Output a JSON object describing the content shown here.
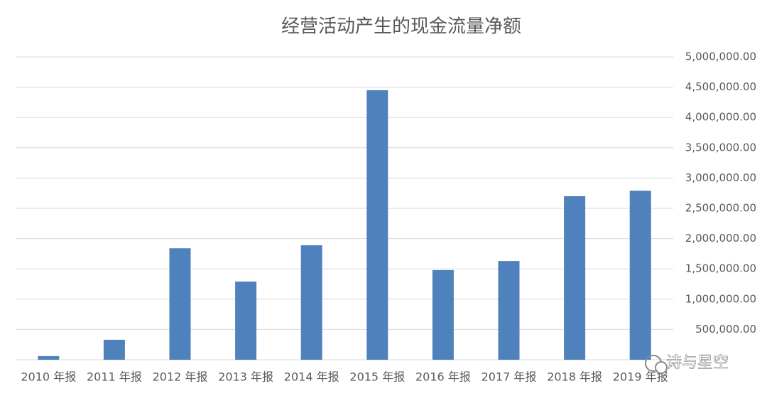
{
  "chart_data": {
    "type": "bar",
    "title": "经营活动产生的现金流量净额",
    "categories": [
      "2010 年报",
      "2011 年报",
      "2012 年报",
      "2013 年报",
      "2014 年报",
      "2015 年报",
      "2016 年报",
      "2017 年报",
      "2018 年报",
      "2019 年报"
    ],
    "values": [
      60000,
      330000,
      1840000,
      1290000,
      1890000,
      4450000,
      1480000,
      1630000,
      2700000,
      2790000
    ],
    "color": "#4f81bd",
    "ylim": [
      0,
      5000000
    ],
    "yticks": [
      {
        "value": 500000,
        "label": "500,000.00"
      },
      {
        "value": 1000000,
        "label": "1,000,000.00"
      },
      {
        "value": 1500000,
        "label": "1,500,000.00"
      },
      {
        "value": 2000000,
        "label": "2,000,000.00"
      },
      {
        "value": 2500000,
        "label": "2,500,000.00"
      },
      {
        "value": 3000000,
        "label": "3,000,000.00"
      },
      {
        "value": 3500000,
        "label": "3,500,000.00"
      },
      {
        "value": 4000000,
        "label": "4,000,000.00"
      },
      {
        "value": 4500000,
        "label": "4,500,000.00"
      },
      {
        "value": 5000000,
        "label": "5,000,000.00"
      }
    ],
    "grid": true,
    "yaxis_side": "right"
  },
  "watermark": "诗与星空"
}
